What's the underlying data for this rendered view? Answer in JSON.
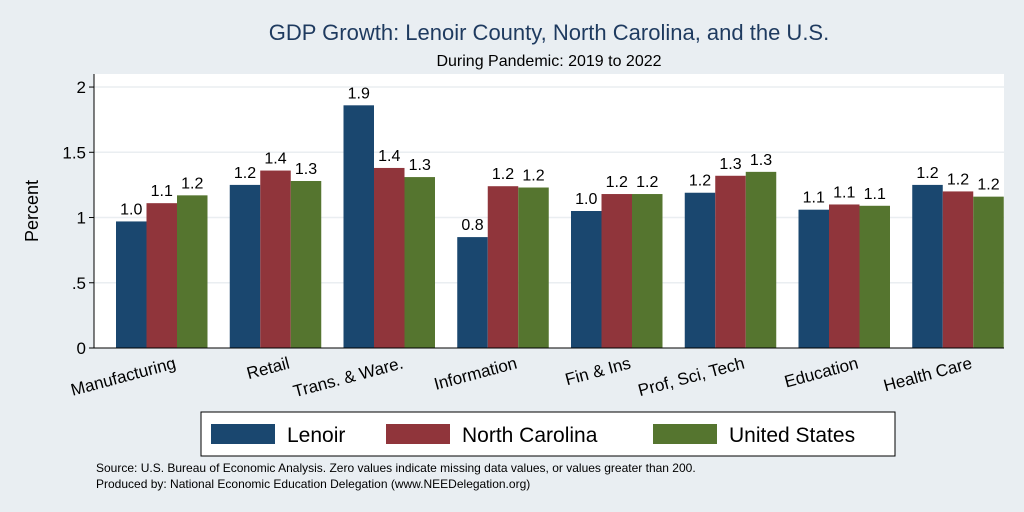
{
  "chart_data": {
    "type": "bar",
    "title": "GDP Growth: Lenoir County, North Carolina, and the U.S.",
    "subtitle": "During Pandemic: 2019 to 2022",
    "ylabel": "Percent",
    "xlabel": "",
    "ylim": [
      0,
      2.1
    ],
    "yticks": [
      {
        "value": 0,
        "label": "0"
      },
      {
        "value": 0.5,
        "label": ".5"
      },
      {
        "value": 1,
        "label": "1"
      },
      {
        "value": 1.5,
        "label": "1.5"
      },
      {
        "value": 2,
        "label": "2"
      }
    ],
    "grid": true,
    "legend_position": "bottom",
    "categories": [
      "Manufacturing",
      "Retail",
      "Trans. & Ware.",
      "Information",
      "Fin & Ins",
      "Prof, Sci, Tech",
      "Education",
      "Health Care"
    ],
    "series": [
      {
        "name": "Lenoir",
        "color": "#1a476f",
        "values": [
          0.97,
          1.25,
          1.86,
          0.85,
          1.05,
          1.19,
          1.06,
          1.25
        ],
        "labels": [
          "1.0",
          "1.2",
          "1.9",
          "0.8",
          "1.0",
          "1.2",
          "1.1",
          "1.2"
        ]
      },
      {
        "name": "North Carolina",
        "color": "#90353b",
        "values": [
          1.11,
          1.36,
          1.38,
          1.24,
          1.18,
          1.32,
          1.1,
          1.2
        ],
        "labels": [
          "1.1",
          "1.4",
          "1.4",
          "1.2",
          "1.2",
          "1.3",
          "1.1",
          "1.2"
        ]
      },
      {
        "name": "United States",
        "color": "#55752f",
        "values": [
          1.17,
          1.28,
          1.31,
          1.23,
          1.18,
          1.35,
          1.09,
          1.16
        ],
        "labels": [
          "1.2",
          "1.3",
          "1.3",
          "1.2",
          "1.2",
          "1.3",
          "1.1",
          "1.2"
        ]
      }
    ],
    "notes": [
      "Source: U.S. Bureau of Economic Analysis. Zero values indicate missing data values, or values greater than 200.",
      "Produced by: National Economic Education Delegation (www.NEEDelegation.org)"
    ]
  },
  "colors": {
    "background": "#e9eef2",
    "plot_background": "#ffffff",
    "title": "#1e3a5f"
  }
}
